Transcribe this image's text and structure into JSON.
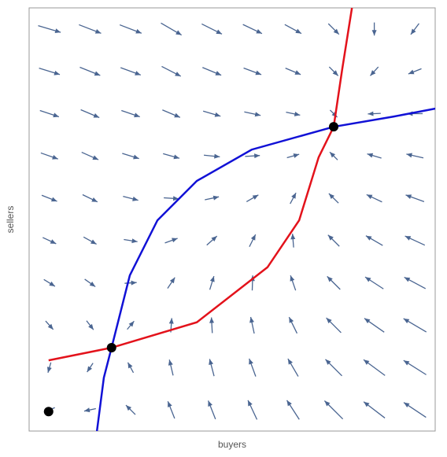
{
  "chart_data": {
    "type": "vector-field",
    "xlabel": "buyers",
    "ylabel": "sellers",
    "xlim": [
      0,
      1
    ],
    "ylim": [
      0,
      1
    ],
    "field": {
      "color": "#4a6591",
      "x": [
        0.05,
        0.15,
        0.25,
        0.35,
        0.45,
        0.55,
        0.65,
        0.75,
        0.85,
        0.95
      ],
      "y": [
        0.05,
        0.15,
        0.25,
        0.35,
        0.45,
        0.55,
        0.65,
        0.75,
        0.85,
        0.95
      ],
      "u": [
        [
          -0.12,
          -0.14,
          -0.16,
          -0.19,
          -0.22,
          -0.29,
          -0.42,
          -0.67,
          -0.9,
          -1.05
        ],
        [
          -0.02,
          -0.04,
          -0.06,
          -0.09,
          -0.12,
          -0.19,
          -0.32,
          -0.57,
          -0.8,
          -0.95
        ],
        [
          0.08,
          0.07,
          0.05,
          0.02,
          -0.02,
          -0.09,
          -0.22,
          -0.47,
          -0.7,
          -0.85
        ],
        [
          0.18,
          0.17,
          0.15,
          0.12,
          0.08,
          0.01,
          -0.12,
          -0.37,
          -0.6,
          -0.75
        ],
        [
          0.28,
          0.27,
          0.25,
          0.22,
          0.18,
          0.11,
          -0.02,
          -0.27,
          -0.5,
          -0.65
        ],
        [
          0.38,
          0.37,
          0.35,
          0.32,
          0.28,
          0.21,
          0.08,
          -0.17,
          -0.4,
          -0.55
        ],
        [
          0.48,
          0.47,
          0.45,
          0.42,
          0.38,
          0.31,
          0.18,
          -0.07,
          -0.3,
          -0.45
        ],
        [
          0.58,
          0.57,
          0.55,
          0.52,
          0.48,
          0.41,
          0.28,
          0.03,
          -0.2,
          -0.35
        ],
        [
          0.68,
          0.67,
          0.65,
          0.62,
          0.58,
          0.51,
          0.38,
          0.13,
          -0.1,
          -0.25
        ],
        [
          0.78,
          0.77,
          0.75,
          0.72,
          0.68,
          0.61,
          0.48,
          0.23,
          0.0,
          -0.15
        ]
      ],
      "v": [
        [
          -0.05,
          -0.03,
          0.16,
          0.48,
          0.56,
          0.62,
          0.65,
          0.67,
          0.69,
          0.7
        ],
        [
          -0.07,
          -0.06,
          0.11,
          0.38,
          0.46,
          0.52,
          0.55,
          0.57,
          0.59,
          0.6
        ],
        [
          -0.09,
          -0.09,
          0.06,
          0.28,
          0.36,
          0.42,
          0.45,
          0.47,
          0.49,
          0.5
        ],
        [
          -0.11,
          -0.12,
          0.01,
          0.18,
          0.26,
          0.32,
          0.35,
          0.37,
          0.39,
          0.4
        ],
        [
          -0.13,
          -0.15,
          -0.04,
          0.08,
          0.16,
          0.22,
          0.25,
          0.27,
          0.29,
          0.3
        ],
        [
          -0.15,
          -0.18,
          -0.09,
          -0.02,
          0.06,
          0.12,
          0.15,
          0.17,
          0.19,
          0.2
        ],
        [
          -0.17,
          -0.21,
          -0.14,
          -0.12,
          -0.04,
          0.02,
          0.05,
          0.07,
          0.09,
          0.1
        ],
        [
          -0.19,
          -0.24,
          -0.19,
          -0.22,
          -0.14,
          -0.09,
          -0.06,
          -0.03,
          -0.01,
          0.0
        ],
        [
          -0.21,
          -0.27,
          -0.24,
          -0.32,
          -0.24,
          -0.19,
          -0.16,
          -0.13,
          -0.11,
          -0.1
        ],
        [
          -0.23,
          -0.3,
          -0.29,
          -0.42,
          -0.34,
          -0.29,
          -0.26,
          -0.23,
          -0.21,
          -0.2
        ]
      ]
    },
    "series": [
      {
        "color": "#e3121b",
        "x": [
          0.048,
          0.203,
          0.413,
          0.587,
          0.665,
          0.713,
          0.75,
          0.771,
          0.795
        ],
        "y": [
          0.167,
          0.197,
          0.257,
          0.387,
          0.498,
          0.647,
          0.719,
          0.855,
          1.0
        ]
      },
      {
        "color": "#1111d6",
        "x": [
          0.167,
          0.184,
          0.203,
          0.248,
          0.316,
          0.413,
          0.548,
          0.75,
          0.897,
          1.0
        ],
        "y": [
          0.0,
          0.126,
          0.197,
          0.368,
          0.498,
          0.591,
          0.665,
          0.719,
          0.743,
          0.762
        ]
      }
    ],
    "points": {
      "color": "#000000",
      "x": [
        0.048,
        0.203,
        0.75
      ],
      "y": [
        0.046,
        0.197,
        0.719
      ]
    }
  }
}
